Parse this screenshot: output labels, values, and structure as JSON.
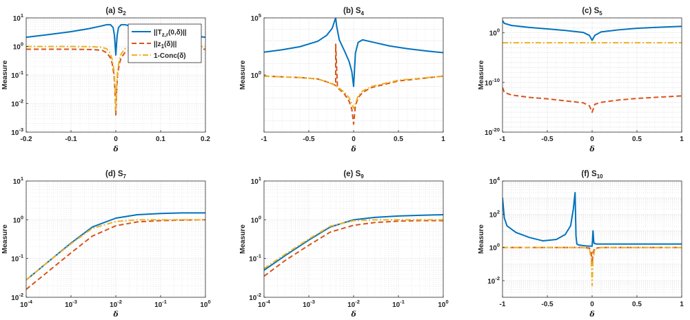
{
  "colors": {
    "s1": "#0072BD",
    "s2": "#D95319",
    "s3": "#EDB120",
    "axis": "#262626",
    "grid": "#DFDFDF"
  },
  "legend": {
    "placement": "top-right of panel (a)",
    "entries": [
      {
        "series": "s1",
        "label": "||T",
        "sub": "z,r",
        "tail": "(0,δ)||"
      },
      {
        "series": "s2",
        "label": "||z",
        "sub": "1",
        "tail": "(δ)||"
      },
      {
        "series": "s3",
        "label": "1-Conc(δ)",
        "sub": "",
        "tail": ""
      }
    ]
  },
  "chart_data": [
    {
      "id": "a",
      "type": "line",
      "title": "(a) S",
      "title_sub": "2",
      "xlabel": "δ",
      "ylabel": "Measure",
      "xscale": "linear",
      "xlim": [
        -0.2,
        0.2
      ],
      "xticks": [
        -0.2,
        -0.1,
        0,
        0.1,
        0.2
      ],
      "xticklabels": [
        "-0.2",
        "-0.1",
        "0",
        "0.1",
        "0.2"
      ],
      "yscale": "log",
      "ylim_exp": [
        -3,
        1
      ],
      "yticks_exp": [
        -3,
        -2,
        -1,
        0,
        1
      ],
      "grid": true,
      "legend": true,
      "series": [
        {
          "key": "s1",
          "style": "solid",
          "x": [
            -0.2,
            -0.15,
            -0.1,
            -0.06,
            -0.03,
            -0.02,
            -0.012,
            -0.006,
            -0.003,
            0,
            0.003,
            0.006,
            0.012,
            0.02,
            0.03,
            0.06,
            0.1,
            0.15,
            0.2
          ],
          "y": [
            2.1,
            2.6,
            3.3,
            4.2,
            5.3,
            5.8,
            5.8,
            4.6,
            2.4,
            0.5,
            2.4,
            4.6,
            5.8,
            5.8,
            5.3,
            4.2,
            3.3,
            2.6,
            2.1
          ]
        },
        {
          "key": "s2",
          "style": "dashed",
          "x": [
            -0.2,
            -0.1,
            -0.05,
            -0.03,
            -0.02,
            -0.012,
            -0.008,
            -0.004,
            -0.002,
            0,
            0.002,
            0.004,
            0.008,
            0.012,
            0.02,
            0.03,
            0.05,
            0.1,
            0.2
          ],
          "y": [
            0.8,
            0.8,
            0.78,
            0.72,
            0.6,
            0.4,
            0.25,
            0.1,
            0.03,
            0.004,
            0.03,
            0.1,
            0.25,
            0.4,
            0.6,
            0.72,
            0.78,
            0.8,
            0.8
          ]
        },
        {
          "key": "s3",
          "style": "dashdot",
          "x": [
            -0.2,
            -0.1,
            -0.05,
            -0.03,
            -0.02,
            -0.012,
            -0.008,
            -0.004,
            -0.002,
            0,
            0.002,
            0.004,
            0.008,
            0.012,
            0.02,
            0.03,
            0.05,
            0.1,
            0.2
          ],
          "y": [
            1.0,
            1.0,
            0.98,
            0.93,
            0.82,
            0.55,
            0.35,
            0.14,
            0.04,
            0.006,
            0.04,
            0.14,
            0.35,
            0.55,
            0.82,
            0.93,
            0.98,
            1.0,
            1.0
          ]
        }
      ]
    },
    {
      "id": "b",
      "type": "line",
      "title": "(b) S",
      "title_sub": "4",
      "xlabel": "δ",
      "ylabel": "Measure",
      "xscale": "linear",
      "xlim": [
        -1,
        1
      ],
      "xticks": [
        -1,
        -0.5,
        0,
        0.5,
        1
      ],
      "xticklabels": [
        "-1",
        "-0.5",
        "0",
        "0.5",
        "1"
      ],
      "yscale": "log",
      "ylim_exp": [
        -5,
        5
      ],
      "yticks_exp": [
        0,
        5
      ],
      "grid": true,
      "legend": false,
      "series": [
        {
          "key": "s1",
          "style": "solid",
          "x": [
            -1,
            -0.8,
            -0.6,
            -0.4,
            -0.3,
            -0.24,
            -0.21,
            -0.2,
            -0.19,
            -0.16,
            -0.1,
            -0.05,
            -0.02,
            0,
            0.02,
            0.05,
            0.1,
            0.2,
            0.4,
            0.6,
            0.8,
            1
          ],
          "y": [
            100,
            160,
            300,
            900,
            3000,
            12000,
            60000,
            100000,
            20000,
            1200,
            120,
            15,
            2,
            0.1,
            80,
            700,
            1200,
            800,
            350,
            200,
            130,
            90
          ]
        },
        {
          "key": "s2",
          "style": "dashed",
          "x": [
            -1,
            -0.6,
            -0.4,
            -0.3,
            -0.22,
            -0.2,
            -0.2,
            -0.18,
            -0.1,
            -0.05,
            -0.02,
            0,
            0.02,
            0.05,
            0.1,
            0.2,
            0.5,
            1
          ],
          "y": [
            0.8,
            0.6,
            0.45,
            0.25,
            0.15,
            0.12,
            500,
            0.08,
            0.02,
            0.005,
            0.001,
            5e-05,
            0.002,
            0.01,
            0.03,
            0.08,
            0.3,
            0.8
          ]
        },
        {
          "key": "s3",
          "style": "dashdot",
          "x": [
            -1,
            -0.6,
            -0.4,
            -0.3,
            -0.2,
            -0.1,
            -0.05,
            -0.02,
            0,
            0.02,
            0.05,
            0.1,
            0.2,
            0.5,
            1
          ],
          "y": [
            0.8,
            0.6,
            0.45,
            0.25,
            0.12,
            0.03,
            0.01,
            0.003,
            0.0012,
            0.003,
            0.015,
            0.04,
            0.1,
            0.35,
            0.8
          ]
        }
      ]
    },
    {
      "id": "c",
      "type": "line",
      "title": "(c) S",
      "title_sub": "5",
      "xlabel": "δ",
      "ylabel": "Measure",
      "xscale": "linear",
      "xlim": [
        -1,
        1
      ],
      "xticks": [
        -1,
        -0.5,
        0,
        0.5,
        1
      ],
      "xticklabels": [
        "-1",
        "-0.5",
        "0",
        "0.5",
        "1"
      ],
      "yscale": "log",
      "ylim_exp": [
        -20,
        3
      ],
      "yticks_exp": [
        -20,
        -10,
        0
      ],
      "grid": true,
      "legend": false,
      "series": [
        {
          "key": "s1",
          "style": "solid",
          "x": [
            -1,
            -0.98,
            -0.9,
            -0.7,
            -0.5,
            -0.3,
            -0.1,
            -0.03,
            0,
            0.03,
            0.1,
            0.3,
            0.5,
            0.7,
            1
          ],
          "y": [
            300,
            80,
            30,
            12,
            6,
            3,
            1.2,
            0.3,
            0.03,
            0.3,
            1.5,
            4,
            8,
            12,
            20
          ]
        },
        {
          "key": "s2",
          "style": "dashed",
          "x": [
            -1,
            -0.98,
            -0.9,
            -0.7,
            -0.5,
            -0.3,
            -0.1,
            -0.03,
            0,
            0.03,
            0.1,
            0.3,
            0.5,
            0.7,
            1
          ],
          "y": [
            1e-11,
            1e-12,
            3e-13,
            1e-13,
            5e-14,
            2e-14,
            8e-15,
            2e-15,
            1e-16,
            4e-15,
            1e-14,
            3e-14,
            6e-14,
            1e-13,
            2e-13
          ]
        },
        {
          "key": "s3",
          "style": "dashdot",
          "x": [
            -1,
            0,
            1
          ],
          "y": [
            0.01,
            0.01,
            0.01
          ]
        }
      ]
    },
    {
      "id": "d",
      "type": "line",
      "title": "(d) S",
      "title_sub": "7",
      "xlabel": "δ",
      "ylabel": "Measure",
      "xscale": "log",
      "xlim_exp": [
        -4,
        0
      ],
      "xticks_exp": [
        -4,
        -3,
        -2,
        -1,
        0
      ],
      "yscale": "log",
      "ylim_exp": [
        -2,
        1
      ],
      "yticks_exp": [
        -2,
        -1,
        0,
        1
      ],
      "grid": true,
      "legend": false,
      "series": [
        {
          "key": "s1",
          "style": "solid",
          "x": [
            0.0001,
            0.0003,
            0.001,
            0.003,
            0.01,
            0.03,
            0.1,
            0.3,
            1
          ],
          "y": [
            0.028,
            0.08,
            0.25,
            0.65,
            1.1,
            1.35,
            1.45,
            1.5,
            1.5
          ]
        },
        {
          "key": "s2",
          "style": "dashed",
          "x": [
            0.0001,
            0.0003,
            0.001,
            0.003,
            0.01,
            0.03,
            0.1,
            0.3,
            1
          ],
          "y": [
            0.016,
            0.045,
            0.14,
            0.38,
            0.7,
            0.88,
            0.95,
            0.98,
            1.0
          ]
        },
        {
          "key": "s3",
          "style": "dashdot",
          "x": [
            0.0001,
            0.0003,
            0.001,
            0.003,
            0.01,
            0.03,
            0.1,
            0.3,
            1
          ],
          "y": [
            0.028,
            0.08,
            0.24,
            0.6,
            0.9,
            1.0,
            1.0,
            1.0,
            1.0
          ]
        }
      ]
    },
    {
      "id": "e",
      "type": "line",
      "title": "(e) S",
      "title_sub": "9",
      "xlabel": "δ",
      "ylabel": "Measure",
      "xscale": "log",
      "xlim_exp": [
        -4,
        0
      ],
      "xticks_exp": [
        -4,
        -3,
        -2,
        -1,
        0
      ],
      "yscale": "log",
      "ylim_exp": [
        -2,
        1
      ],
      "yticks_exp": [
        -2,
        -1,
        0,
        1
      ],
      "grid": true,
      "legend": false,
      "series": [
        {
          "key": "s1",
          "style": "solid",
          "x": [
            0.0001,
            0.0003,
            0.001,
            0.003,
            0.01,
            0.03,
            0.1,
            0.3,
            1
          ],
          "y": [
            0.05,
            0.12,
            0.3,
            0.65,
            1.0,
            1.15,
            1.25,
            1.3,
            1.35
          ]
        },
        {
          "key": "s2",
          "style": "dashed",
          "x": [
            0.0001,
            0.0003,
            0.001,
            0.003,
            0.01,
            0.03,
            0.1,
            0.3,
            1
          ],
          "y": [
            0.035,
            0.09,
            0.22,
            0.48,
            0.72,
            0.85,
            0.92,
            0.95,
            0.95
          ]
        },
        {
          "key": "s3",
          "style": "dashdot",
          "x": [
            0.0001,
            0.0003,
            0.001,
            0.003,
            0.01,
            0.03,
            0.1,
            0.3,
            1
          ],
          "y": [
            0.055,
            0.13,
            0.32,
            0.68,
            0.95,
            1.0,
            1.0,
            1.0,
            1.0
          ]
        }
      ]
    },
    {
      "id": "f",
      "type": "line",
      "title": "(f) S",
      "title_sub": "10",
      "xlabel": "δ",
      "ylabel": "Measure",
      "xscale": "linear",
      "xlim": [
        -1,
        1
      ],
      "xticks": [
        -1,
        -0.5,
        0,
        0.5,
        1
      ],
      "xticklabels": [
        "-1",
        "-0.5",
        "0",
        "0.5",
        "1"
      ],
      "yscale": "log",
      "ylim_exp": [
        -3,
        4
      ],
      "yticks_exp": [
        -2,
        0,
        2,
        4
      ],
      "grid": true,
      "legend": false,
      "series": [
        {
          "key": "s1",
          "style": "solid",
          "x": [
            -1,
            -0.98,
            -0.95,
            -0.85,
            -0.7,
            -0.55,
            -0.4,
            -0.3,
            -0.24,
            -0.21,
            -0.19,
            -0.18,
            -0.17,
            -0.15,
            -0.1,
            -0.05,
            0,
            0.01,
            0.02,
            0.05,
            0.2,
            0.5,
            1
          ],
          "y": [
            1000,
            60,
            20,
            8,
            4,
            2.5,
            3,
            6,
            20,
            200,
            2000,
            5,
            1.6,
            1.4,
            1.3,
            1.2,
            1.2,
            10,
            1.8,
            1.6,
            1.6,
            1.6,
            1.6
          ]
        },
        {
          "key": "s2",
          "style": "dashed",
          "x": [
            -1,
            -0.5,
            -0.1,
            -0.03,
            -0.01,
            0,
            0.01,
            0.03,
            0.1,
            0.5,
            1
          ],
          "y": [
            1.0,
            1.0,
            1.0,
            0.9,
            0.5,
            0.1,
            0.5,
            0.9,
            1.0,
            1.0,
            1.0
          ]
        },
        {
          "key": "s3",
          "style": "dashdot",
          "x": [
            -1,
            -0.5,
            -0.1,
            -0.03,
            -0.01,
            0,
            0.01,
            0.03,
            0.1,
            0.5,
            1
          ],
          "y": [
            1.0,
            1.0,
            1.0,
            0.8,
            0.2,
            0.005,
            0.2,
            0.8,
            1.0,
            1.0,
            1.0
          ]
        }
      ]
    }
  ]
}
